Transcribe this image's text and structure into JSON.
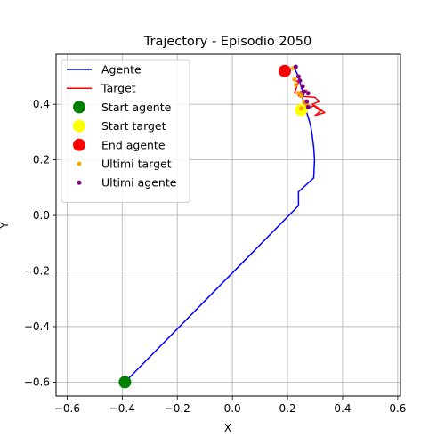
{
  "chart_data": {
    "type": "line",
    "title": "Trajectory - Episodio 2050",
    "xlabel": "X",
    "ylabel": "Y",
    "xlim": [
      -0.64,
      0.61
    ],
    "ylim": [
      -0.65,
      0.58
    ],
    "xticks": [
      -0.6,
      -0.4,
      -0.2,
      0.0,
      0.2,
      0.4,
      0.6
    ],
    "yticks": [
      -0.6,
      -0.4,
      -0.2,
      0.0,
      0.2,
      0.4
    ],
    "xtick_labels": [
      "−0.6",
      "−0.4",
      "−0.2",
      "0.0",
      "0.2",
      "0.4",
      "0.6"
    ],
    "ytick_labels": [
      "−0.6",
      "−0.4",
      "−0.2",
      "0.0",
      "0.2",
      "0.4"
    ],
    "grid": true,
    "legend_position": "top-left",
    "legend": [
      {
        "label": "Agente",
        "kind": "line",
        "color": "#0000ff"
      },
      {
        "label": "Target",
        "kind": "line",
        "color": "#ff0000"
      },
      {
        "label": "Start agente",
        "kind": "dot",
        "color": "#008000",
        "size": 7
      },
      {
        "label": "Start target",
        "kind": "dot",
        "color": "#ffff00",
        "size": 7
      },
      {
        "label": "End agente",
        "kind": "dot",
        "color": "#ff0000",
        "size": 7
      },
      {
        "label": "Ultimi target",
        "kind": "dot",
        "color": "#ffa500",
        "size": 2.5
      },
      {
        "label": "Ultimi agente",
        "kind": "dot",
        "color": "#800080",
        "size": 2.5
      }
    ],
    "series": [
      {
        "name": "Agente",
        "color": "#0000ff",
        "points": [
          [
            -0.39,
            -0.6
          ],
          [
            0.24,
            0.035
          ],
          [
            0.24,
            0.085
          ],
          [
            0.295,
            0.135
          ],
          [
            0.298,
            0.2
          ],
          [
            0.295,
            0.245
          ],
          [
            0.288,
            0.3
          ],
          [
            0.282,
            0.33
          ],
          [
            0.27,
            0.37
          ],
          [
            0.262,
            0.39
          ],
          [
            0.258,
            0.405
          ],
          [
            0.255,
            0.425
          ],
          [
            0.26,
            0.44
          ],
          [
            0.25,
            0.46
          ],
          [
            0.245,
            0.48
          ],
          [
            0.24,
            0.5
          ],
          [
            0.225,
            0.53
          ],
          [
            0.2,
            0.525
          ],
          [
            0.19,
            0.52
          ]
        ]
      },
      {
        "name": "Target",
        "color": "#ff0000",
        "points": [
          [
            0.25,
            0.38
          ],
          [
            0.3,
            0.395
          ],
          [
            0.335,
            0.37
          ],
          [
            0.3,
            0.36
          ],
          [
            0.32,
            0.375
          ],
          [
            0.29,
            0.4
          ],
          [
            0.315,
            0.41
          ],
          [
            0.3,
            0.425
          ],
          [
            0.24,
            0.43
          ],
          [
            0.27,
            0.45
          ],
          [
            0.225,
            0.44
          ],
          [
            0.24,
            0.48
          ],
          [
            0.22,
            0.49
          ]
        ]
      }
    ],
    "markers": [
      {
        "name": "Start agente",
        "x": -0.39,
        "y": -0.6,
        "color": "#008000",
        "size": 7
      },
      {
        "name": "Start target",
        "x": 0.25,
        "y": 0.38,
        "color": "#ffff00",
        "size": 7
      },
      {
        "name": "End agente",
        "x": 0.19,
        "y": 0.52,
        "color": "#ff0000",
        "size": 7
      }
    ],
    "ultimi_target": [
      [
        0.22,
        0.53
      ],
      [
        0.225,
        0.49
      ],
      [
        0.23,
        0.47
      ],
      [
        0.24,
        0.44
      ],
      [
        0.25,
        0.43
      ],
      [
        0.26,
        0.41
      ],
      [
        0.27,
        0.4
      ],
      [
        0.25,
        0.385
      ]
    ],
    "ultimi_agente": [
      [
        0.23,
        0.535
      ],
      [
        0.24,
        0.5
      ],
      [
        0.245,
        0.485
      ],
      [
        0.255,
        0.465
      ],
      [
        0.26,
        0.445
      ],
      [
        0.275,
        0.44
      ],
      [
        0.27,
        0.41
      ],
      [
        0.275,
        0.39
      ]
    ]
  }
}
